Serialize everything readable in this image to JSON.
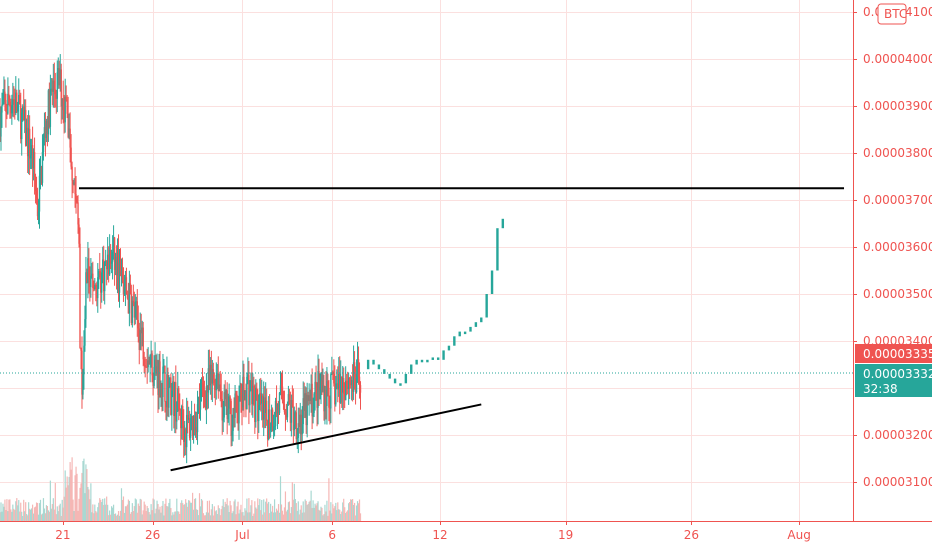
{
  "chart_data": {
    "type": "candlestick",
    "currency_label": "BTC",
    "y_ticks": [
      "0.00004100",
      "0.00004000",
      "0.00003900",
      "0.00003800",
      "0.00003700",
      "0.00003600",
      "0.00003500",
      "0.00003400",
      "0.00003200",
      "0.00003100"
    ],
    "y_range": [
      3.02e-05,
      4.13e-05
    ],
    "x_ticks": [
      "21",
      "26",
      "Jul",
      "6",
      "12",
      "19",
      "26",
      "Aug"
    ],
    "x_range_days": [
      17.5,
      65.0
    ],
    "x_tick_days": [
      21,
      26,
      31,
      36,
      42,
      49,
      56,
      62
    ],
    "price_path": [
      [
        17.5,
        3.88
      ],
      [
        18.2,
        3.92
      ],
      [
        18.8,
        3.86
      ],
      [
        19.3,
        3.79
      ],
      [
        19.6,
        3.68
      ],
      [
        20.0,
        3.85
      ],
      [
        20.4,
        3.93
      ],
      [
        20.8,
        3.95
      ],
      [
        21.2,
        3.89
      ],
      [
        21.6,
        3.75
      ],
      [
        21.9,
        3.62
      ],
      [
        22.05,
        3.25
      ],
      [
        22.3,
        3.55
      ],
      [
        22.8,
        3.52
      ],
      [
        23.3,
        3.55
      ],
      [
        23.8,
        3.58
      ],
      [
        24.3,
        3.52
      ],
      [
        24.8,
        3.48
      ],
      [
        25.3,
        3.42
      ],
      [
        25.8,
        3.36
      ],
      [
        26.3,
        3.33
      ],
      [
        26.8,
        3.3
      ],
      [
        27.3,
        3.27
      ],
      [
        27.8,
        3.21
      ],
      [
        28.3,
        3.23
      ],
      [
        28.8,
        3.29
      ],
      [
        29.3,
        3.31
      ],
      [
        29.6,
        3.34
      ],
      [
        29.9,
        3.26
      ],
      [
        30.4,
        3.24
      ],
      [
        30.9,
        3.27
      ],
      [
        31.3,
        3.31
      ],
      [
        31.8,
        3.26
      ],
      [
        32.3,
        3.23
      ],
      [
        32.8,
        3.25
      ],
      [
        33.3,
        3.28
      ],
      [
        33.8,
        3.24
      ],
      [
        34.3,
        3.23
      ],
      [
        34.8,
        3.27
      ],
      [
        35.3,
        3.3
      ],
      [
        35.8,
        3.29
      ],
      [
        36.3,
        3.3
      ],
      [
        36.8,
        3.32
      ],
      [
        37.3,
        3.31
      ],
      [
        37.6,
        3.33
      ]
    ],
    "projected_steps": [
      [
        37.6,
        3.34
      ],
      [
        38.0,
        3.36
      ],
      [
        38.3,
        3.35
      ],
      [
        38.6,
        3.34
      ],
      [
        38.9,
        3.33
      ],
      [
        39.2,
        3.32
      ],
      [
        39.5,
        3.31
      ],
      [
        39.8,
        3.31
      ],
      [
        40.1,
        3.33
      ],
      [
        40.4,
        3.35
      ],
      [
        40.7,
        3.36
      ],
      [
        41.0,
        3.36
      ],
      [
        41.3,
        3.36
      ],
      [
        41.6,
        3.365
      ],
      [
        41.9,
        3.36
      ],
      [
        42.2,
        3.38
      ],
      [
        42.5,
        3.39
      ],
      [
        42.8,
        3.41
      ],
      [
        43.1,
        3.42
      ],
      [
        43.4,
        3.42
      ],
      [
        43.7,
        3.43
      ],
      [
        44.0,
        3.44
      ],
      [
        44.3,
        3.45
      ],
      [
        44.6,
        3.5
      ],
      [
        44.9,
        3.55
      ],
      [
        45.2,
        3.64
      ],
      [
        45.5,
        3.66
      ]
    ],
    "resistance_line": {
      "y": 3.725,
      "x0": 21.9,
      "x1": 64.5
    },
    "support_line": {
      "x0": 27.0,
      "y0": 3.125,
      "x1": 44.3,
      "y1": 3.265
    },
    "current_price_line": 3.332,
    "price_badge_1": "0.00003335",
    "price_badge_2": "0.00003332",
    "countdown": "32:38",
    "colors": {
      "up": "#26a69a",
      "down": "#ef5350",
      "grid": "#fbe0df",
      "axis_text": "#ef5350",
      "badge_red": "#ef5350",
      "badge_teal": "#26a69a",
      "line": "#000000"
    }
  }
}
